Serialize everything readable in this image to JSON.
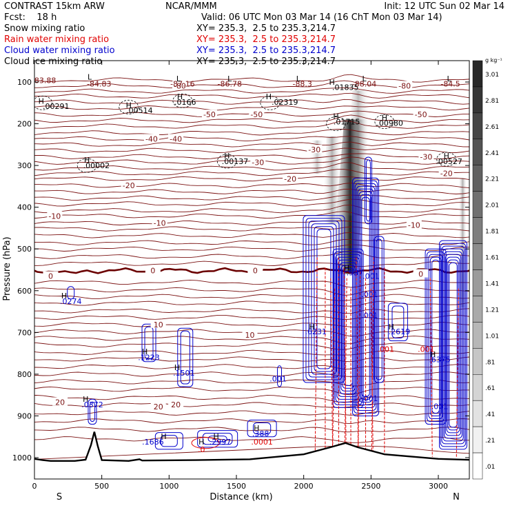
{
  "header": {
    "left1": "CONTRAST 15km ARW",
    "left2": "Fcst:    18 h",
    "center1": "NCAR/MMM",
    "right1": "Init: 12 UTC Sun 02 Mar 14",
    "right2": "Valid: 06 UTC Mon 03 Mar 14 (16 ChT Mon 03 Mar 14)"
  },
  "legend": [
    {
      "name": "Snow mixing ratio",
      "xy": "XY= 235.3,  2.5 to 235.3,214.7",
      "color": "#000000"
    },
    {
      "name": "Rain water mixing ratio",
      "xy": "XY= 235.3,  2.5 to 235.3,214.7",
      "color": "#e00000"
    },
    {
      "name": "Cloud water mixing ratio",
      "xy": "XY= 235.3,  2.5 to 235.3,214.7",
      "color": "#0000cc"
    },
    {
      "name": "Cloud ice mixing ratio",
      "xy": "XY= 235.3,  2.5 to 235.3,214.7",
      "color": "#000000"
    }
  ],
  "colors": {
    "temp": "#7a1010",
    "zero": "#6b0000",
    "cloud": "#0000cc",
    "rain": "#e00000",
    "terrain": "#000000"
  },
  "chart_data": {
    "type": "cross-section",
    "xlabel": "Distance (km)",
    "ylabel": "Pressure (hPa)",
    "xlim": [
      0,
      3200
    ],
    "ylim": [
      1050,
      50
    ],
    "x_ticks": [
      "0",
      "500",
      "1000",
      "1500",
      "2000",
      "2500",
      "3000"
    ],
    "y_ticks": [
      "100",
      "200",
      "300",
      "400",
      "500",
      "600",
      "700",
      "800",
      "900",
      "1000"
    ],
    "end_labels": {
      "left": "S",
      "right": "N"
    },
    "colorbar": {
      "unit": "g kg⁻¹",
      "ticks": [
        "3.01",
        "2.81",
        "2.61",
        "2.41",
        "2.21",
        "2.01",
        "1.81",
        "1.61",
        "1.41",
        "1.21",
        "1.01",
        ".81",
        ".61",
        ".41",
        ".21",
        ".01"
      ]
    },
    "temperature_contour_labels": [
      {
        "text": "-80",
        "x": 1080,
        "p": 109
      },
      {
        "text": "-80",
        "x": 2750,
        "p": 109
      },
      {
        "text": "-50",
        "x": 1300,
        "p": 178
      },
      {
        "text": "-50",
        "x": 1650,
        "p": 178
      },
      {
        "text": "-50",
        "x": 2870,
        "p": 178
      },
      {
        "text": "-40",
        "x": 870,
        "p": 236
      },
      {
        "text": "-40",
        "x": 1050,
        "p": 236
      },
      {
        "text": "-30",
        "x": 1660,
        "p": 292
      },
      {
        "text": "-30",
        "x": 2080,
        "p": 262
      },
      {
        "text": "-30",
        "x": 2910,
        "p": 279
      },
      {
        "text": "-20",
        "x": 700,
        "p": 348
      },
      {
        "text": "-20",
        "x": 1900,
        "p": 332
      },
      {
        "text": "-20",
        "x": 3060,
        "p": 319
      },
      {
        "text": "-10",
        "x": 150,
        "p": 421
      },
      {
        "text": "-10",
        "x": 930,
        "p": 438
      },
      {
        "text": "-10",
        "x": 2820,
        "p": 443
      },
      {
        "text": "0",
        "x": 120,
        "p": 565
      },
      {
        "text": "0",
        "x": 880,
        "p": 552
      },
      {
        "text": "0",
        "x": 1640,
        "p": 552
      },
      {
        "text": "0",
        "x": 2870,
        "p": 560
      },
      {
        "text": "10",
        "x": 920,
        "p": 681
      },
      {
        "text": "10",
        "x": 1600,
        "p": 706
      },
      {
        "text": "20",
        "x": 190,
        "p": 867
      },
      {
        "text": "20",
        "x": 920,
        "p": 878
      },
      {
        "text": "20",
        "x": 1050,
        "p": 873
      }
    ],
    "value_labels": [
      {
        "text": "83.88",
        "x": 80,
        "p": 96,
        "kind": "temp"
      },
      {
        "text": "-84.83",
        "x": 480,
        "p": 104,
        "kind": "temp"
      },
      {
        "text": "-87.16",
        "x": 1100,
        "p": 104,
        "kind": "temp"
      },
      {
        "text": "-86.78",
        "x": 1450,
        "p": 104,
        "kind": "temp"
      },
      {
        "text": "-88.3",
        "x": 1990,
        "p": 104,
        "kind": "temp"
      },
      {
        "text": "-88.04",
        "x": 2450,
        "p": 104,
        "kind": "temp"
      },
      {
        "text": "-84.5",
        "x": 3090,
        "p": 104,
        "kind": "temp"
      },
      {
        "text": ".00291",
        "x": 160,
        "p": 158,
        "kind": "ice"
      },
      {
        "text": ".00514",
        "x": 780,
        "p": 168,
        "kind": "ice"
      },
      {
        "text": ".0166",
        "x": 1120,
        "p": 148,
        "kind": "ice"
      },
      {
        "text": ".02319",
        "x": 1860,
        "p": 148,
        "kind": "ice"
      },
      {
        "text": ".01835",
        "x": 2310,
        "p": 112,
        "kind": "ice"
      },
      {
        "text": ".01715",
        "x": 2320,
        "p": 195,
        "kind": "ice"
      },
      {
        "text": ".00980",
        "x": 2640,
        "p": 198,
        "kind": "ice"
      },
      {
        "text": ".00002",
        "x": 460,
        "p": 300,
        "kind": "ice"
      },
      {
        "text": ".00137",
        "x": 1490,
        "p": 290,
        "kind": "ice"
      },
      {
        "text": ".00527",
        "x": 3080,
        "p": 290,
        "kind": "ice"
      },
      {
        "text": ".0274",
        "x": 270,
        "p": 625,
        "kind": "cloud"
      },
      {
        "text": ".1223",
        "x": 850,
        "p": 760,
        "kind": "cloud"
      },
      {
        "text": ".1501",
        "x": 1110,
        "p": 797,
        "kind": "cloud"
      },
      {
        "text": ".001",
        "x": 1810,
        "p": 811,
        "kind": "cloud"
      },
      {
        "text": ".937",
        "x": 2380,
        "p": 557,
        "kind": "cloud"
      },
      {
        "text": ".001",
        "x": 2490,
        "p": 609,
        "kind": "cloud"
      },
      {
        "text": ".001",
        "x": 2490,
        "p": 659,
        "kind": "cloud"
      },
      {
        "text": ".6231",
        "x": 2090,
        "p": 698,
        "kind": "cloud"
      },
      {
        "text": ".2619",
        "x": 2710,
        "p": 698,
        "kind": "cloud"
      },
      {
        "text": ".0372",
        "x": 430,
        "p": 873,
        "kind": "cloud"
      },
      {
        "text": ".1686",
        "x": 880,
        "p": 962,
        "kind": "cloud"
      },
      {
        "text": ".2997",
        "x": 1380,
        "p": 962,
        "kind": "cloud"
      },
      {
        "text": ".388",
        "x": 1680,
        "p": 942,
        "kind": "cloud"
      },
      {
        "text": ".6375",
        "x": 3010,
        "p": 765,
        "kind": "cloud"
      },
      {
        "text": ".001",
        "x": 3010,
        "p": 877,
        "kind": "cloud"
      },
      {
        "text": ".001",
        "x": 2490,
        "p": 858,
        "kind": "cloud"
      },
      {
        "text": ".001",
        "x": 2610,
        "p": 740,
        "kind": "rain"
      },
      {
        "text": ".001",
        "x": 2910,
        "p": 740,
        "kind": "rain"
      },
      {
        "text": ".0",
        "x": 1240,
        "p": 980,
        "kind": "rain"
      },
      {
        "text": ".0001",
        "x": 1690,
        "p": 962,
        "kind": "rain"
      },
      {
        "text": ".001",
        "x": 2500,
        "p": 565,
        "kind": "cloud"
      }
    ],
    "extrema_markers": [
      {
        "text": "L",
        "x": 410,
        "p": 88
      },
      {
        "text": "L",
        "x": 1070,
        "p": 92
      },
      {
        "text": "L",
        "x": 1450,
        "p": 92
      },
      {
        "text": "L",
        "x": 1960,
        "p": 92
      },
      {
        "text": "L",
        "x": 2450,
        "p": 92
      },
      {
        "text": "L",
        "x": 3080,
        "p": 92
      },
      {
        "text": "H",
        "x": 50,
        "p": 145
      },
      {
        "text": "H",
        "x": 700,
        "p": 155
      },
      {
        "text": "H",
        "x": 1080,
        "p": 135
      },
      {
        "text": "H",
        "x": 1740,
        "p": 135
      },
      {
        "text": "H",
        "x": 2210,
        "p": 100
      },
      {
        "text": "H",
        "x": 2240,
        "p": 182
      },
      {
        "text": "H",
        "x": 2600,
        "p": 185
      },
      {
        "text": "H",
        "x": 390,
        "p": 287
      },
      {
        "text": "H",
        "x": 1430,
        "p": 277
      },
      {
        "text": "H",
        "x": 3060,
        "p": 277
      },
      {
        "text": "H",
        "x": 220,
        "p": 612
      },
      {
        "text": "H",
        "x": 2320,
        "p": 545
      },
      {
        "text": "H",
        "x": 2060,
        "p": 686
      },
      {
        "text": "H",
        "x": 2650,
        "p": 686
      },
      {
        "text": "H",
        "x": 820,
        "p": 746
      },
      {
        "text": "H",
        "x": 1060,
        "p": 784
      },
      {
        "text": "H",
        "x": 380,
        "p": 860
      },
      {
        "text": "H",
        "x": 960,
        "p": 949
      },
      {
        "text": "H",
        "x": 1240,
        "p": 962
      },
      {
        "text": "H",
        "x": 1350,
        "p": 949
      },
      {
        "text": "H",
        "x": 1650,
        "p": 929
      },
      {
        "text": "H",
        "x": 2960,
        "p": 752
      }
    ]
  }
}
